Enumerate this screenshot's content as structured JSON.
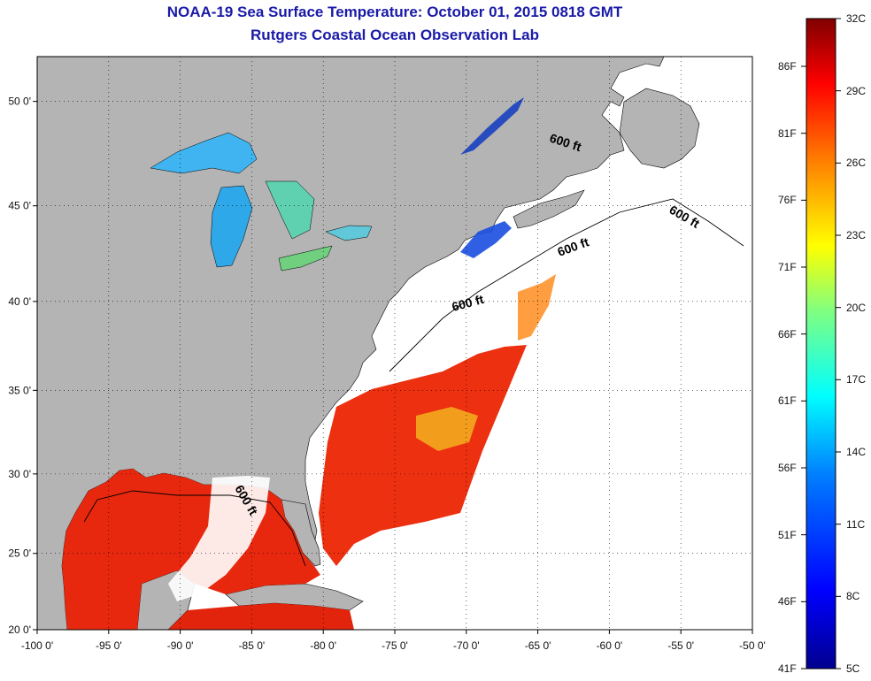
{
  "title": {
    "line1": "NOAA-19 Sea Surface Temperature:  October 01, 2015 0818 GMT",
    "line2": "Rutgers Coastal Ocean Observation Lab"
  },
  "map": {
    "lon_ticks": [
      "-100 0'",
      "-95 0'",
      "-90 0'",
      "-85 0'",
      "-80 0'",
      "-75 0'",
      "-70 0'",
      "-65 0'",
      "-60 0'",
      "-55 0'",
      "-50 0'"
    ],
    "lat_ticks": [
      "50 0'",
      "45 0'",
      "40 0'",
      "35 0'",
      "30 0'",
      "25 0'",
      "20 0'"
    ],
    "lon_range": [
      -100,
      -50
    ],
    "lat_range": [
      20,
      52
    ],
    "land_color": "#b4b4b4",
    "grid": "dotted",
    "contour_labels": [
      "600 ft",
      "600 ft",
      "600 ft",
      "600 ft",
      "600 ft"
    ]
  },
  "colorbar": {
    "celsius_labels": [
      "32C",
      "29C",
      "26C",
      "23C",
      "20C",
      "17C",
      "14C",
      "11C",
      "8C",
      "5C"
    ],
    "fahrenheit_labels": [
      "86F",
      "81F",
      "76F",
      "71F",
      "66F",
      "61F",
      "56F",
      "51F",
      "46F",
      "41F"
    ],
    "colors": [
      "#00008f",
      "#0000ff",
      "#0080ff",
      "#00ffff",
      "#80ff80",
      "#ffff00",
      "#ff8000",
      "#ff0000",
      "#800000"
    ]
  }
}
